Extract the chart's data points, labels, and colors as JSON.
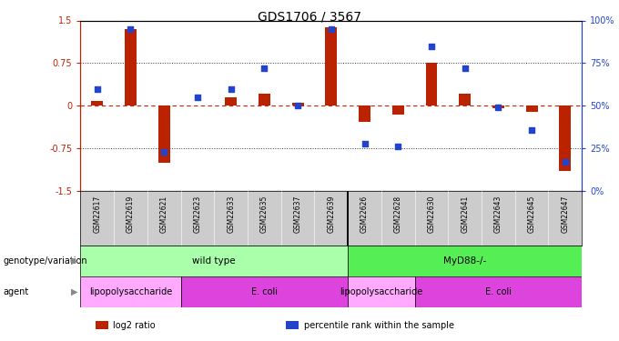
{
  "title": "GDS1706 / 3567",
  "samples": [
    "GSM22617",
    "GSM22619",
    "GSM22621",
    "GSM22623",
    "GSM22633",
    "GSM22635",
    "GSM22637",
    "GSM22639",
    "GSM22626",
    "GSM22628",
    "GSM22630",
    "GSM22641",
    "GSM22643",
    "GSM22645",
    "GSM22647"
  ],
  "log2_ratio": [
    0.08,
    1.35,
    -1.0,
    0.0,
    0.15,
    0.22,
    0.05,
    1.38,
    -0.28,
    -0.15,
    0.75,
    0.22,
    -0.05,
    -0.1,
    -1.15
  ],
  "percentile": [
    60,
    95,
    23,
    55,
    60,
    72,
    50,
    95,
    28,
    26,
    85,
    72,
    49,
    36,
    17
  ],
  "ylim": [
    -1.5,
    1.5
  ],
  "y_ticks_left": [
    -1.5,
    -0.75,
    0,
    0.75,
    1.5
  ],
  "y_ticks_right": [
    0,
    25,
    50,
    75,
    100
  ],
  "bar_color": "#bb2200",
  "dot_color": "#2244cc",
  "zero_line_color": "#cc2200",
  "dotted_line_color": "#333333",
  "background_color": "#ffffff",
  "separator_col": 7.5,
  "genotype_groups": [
    {
      "label": "wild type",
      "start": 0,
      "end": 8,
      "color": "#aaffaa"
    },
    {
      "label": "MyD88-/-",
      "start": 8,
      "end": 15,
      "color": "#55ee55"
    }
  ],
  "agent_groups": [
    {
      "label": "lipopolysaccharide",
      "start": 0,
      "end": 3,
      "color": "#ffaaff"
    },
    {
      "label": "E. coli",
      "start": 3,
      "end": 8,
      "color": "#dd44dd"
    },
    {
      "label": "lipopolysaccharide",
      "start": 8,
      "end": 10,
      "color": "#ffaaff"
    },
    {
      "label": "E. coli",
      "start": 10,
      "end": 15,
      "color": "#dd44dd"
    }
  ],
  "legend_items": [
    {
      "label": "log2 ratio",
      "color": "#bb2200"
    },
    {
      "label": "percentile rank within the sample",
      "color": "#2244cc"
    }
  ],
  "tick_fontsize": 7,
  "bar_width": 0.35,
  "dot_size": 25,
  "sample_label_fontsize": 5.5,
  "annot_fontsize": 7.5,
  "legend_fontsize": 7
}
